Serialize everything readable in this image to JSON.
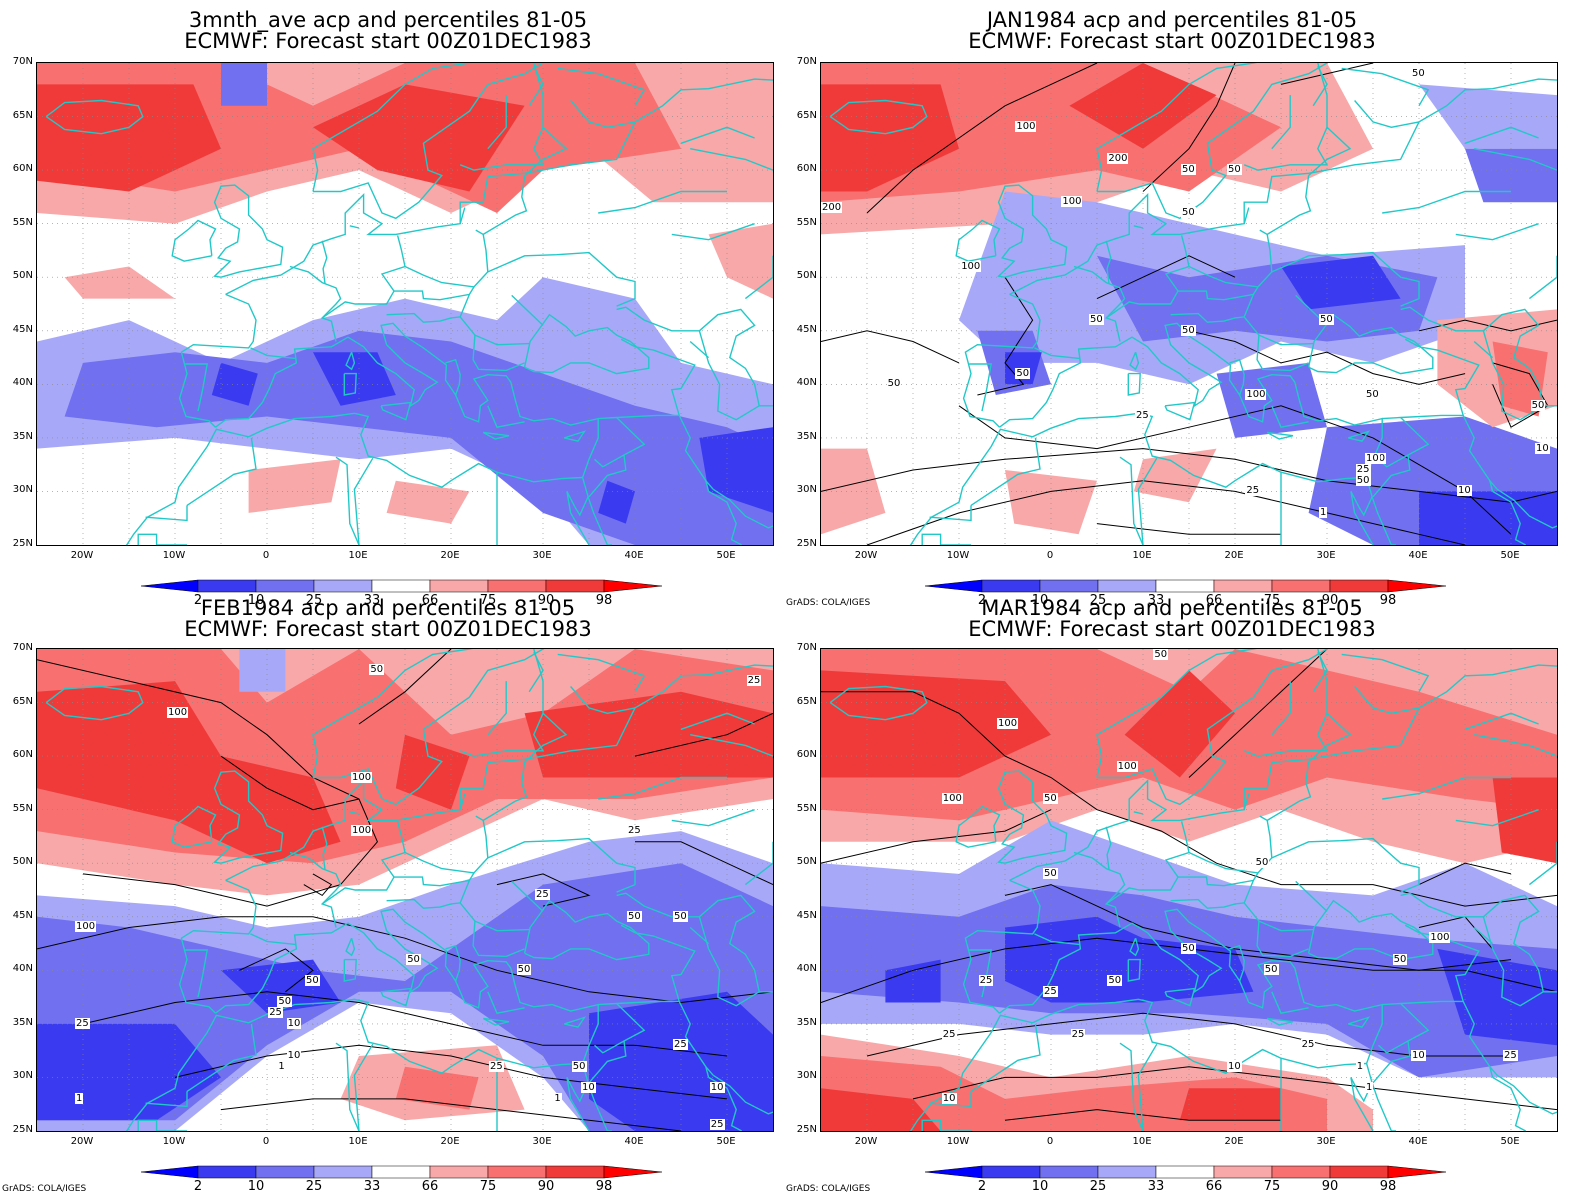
{
  "panels": [
    {
      "id": "p1",
      "title1": "3mnth_ave acp and percentiles 81-05",
      "title2": "ECMWF: Forecast start 00Z01DEC1983",
      "credit": ""
    },
    {
      "id": "p2",
      "title1": "JAN1984 acp and percentiles 81-05",
      "title2": "ECMWF: Forecast start 00Z01DEC1983",
      "credit": "GrADS: COLA/IGES"
    },
    {
      "id": "p3",
      "title1": "FEB1984 acp and percentiles 81-05",
      "title2": "ECMWF: Forecast start 00Z01DEC1983",
      "credit": "GrADS: COLA/IGES"
    },
    {
      "id": "p4",
      "title1": "MAR1984 acp and percentiles 81-05",
      "title2": "ECMWF: Forecast start 00Z01DEC1983",
      "credit": "GrADS: COLA/IGES"
    }
  ],
  "lat_labels": [
    "70N",
    "65N",
    "60N",
    "55N",
    "50N",
    "45N",
    "40N",
    "35N",
    "30N",
    "25N"
  ],
  "lon_labels": [
    "20W",
    "10W",
    "0",
    "10E",
    "20E",
    "30E",
    "40E",
    "50E"
  ],
  "colorbar": {
    "labels": [
      "2",
      "10",
      "25",
      "33",
      "66",
      "75",
      "90",
      "98"
    ],
    "colors": [
      "#0000ff",
      "#3a3af0",
      "#7070f0",
      "#a8a8f8",
      "#ffffff",
      "#f8a8a8",
      "#f87070",
      "#f03a3a",
      "#ff0000"
    ]
  },
  "contour_labels": {
    "p2": [
      "50",
      "100",
      "200",
      "50",
      "50",
      "100",
      "200",
      "50",
      "100",
      "50",
      "50",
      "50",
      "50",
      "100",
      "50",
      "50",
      "25",
      "100",
      "10",
      "10",
      "25",
      "50",
      "25",
      "50",
      "1",
      "1",
      "10"
    ],
    "p3": [
      "50",
      "25",
      "100",
      "100",
      "100",
      "25",
      "25",
      "50",
      "50",
      "100",
      "50",
      "50",
      "50",
      "50",
      "25",
      "10",
      "25",
      "10",
      "1",
      "25",
      "50",
      "10",
      "1",
      "25",
      "10",
      "25",
      "1"
    ],
    "p4": [
      "50",
      "100",
      "100",
      "50",
      "100",
      "50",
      "50",
      "25",
      "50",
      "25",
      "25",
      "50",
      "50",
      "25",
      "100",
      "50",
      "25",
      "10",
      "10",
      "1",
      "1",
      "10",
      "25"
    ]
  },
  "colors": {
    "coast": "#22c8c8",
    "grid": "#888888",
    "contour": "#000000"
  }
}
